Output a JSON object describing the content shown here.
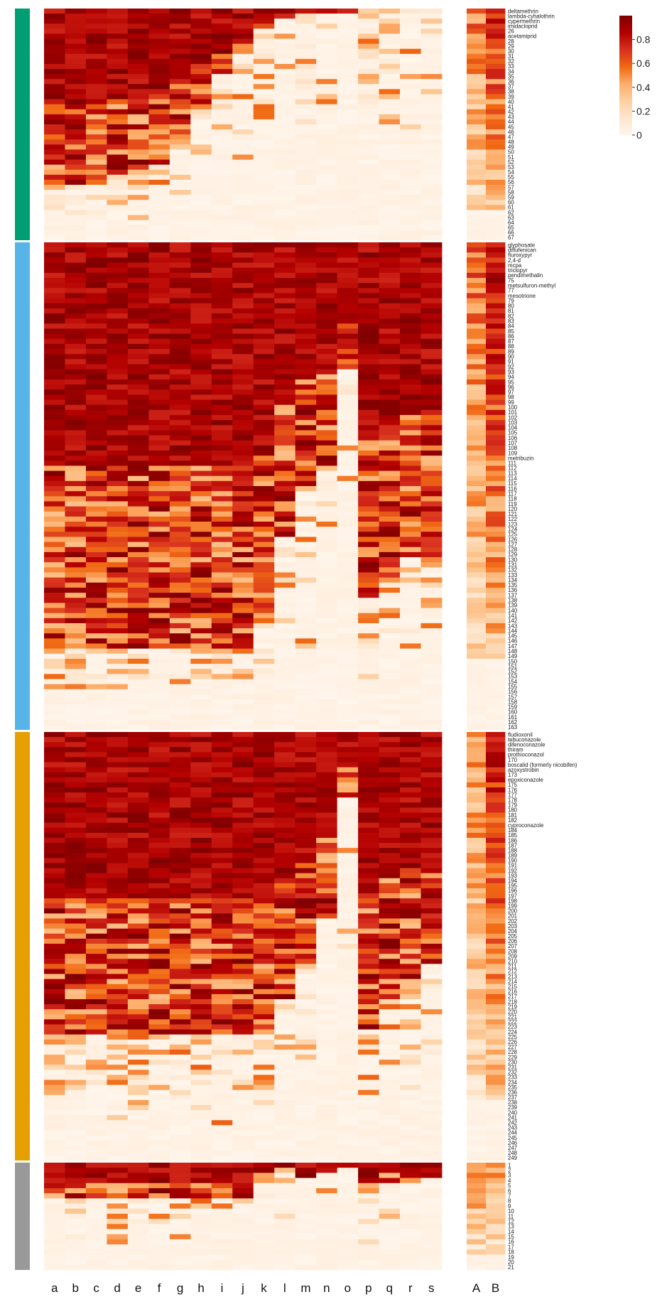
{
  "chart_data": {
    "type": "heatmap",
    "x_columns": [
      "a",
      "b",
      "c",
      "d",
      "e",
      "f",
      "g",
      "h",
      "i",
      "j",
      "k",
      "l",
      "m",
      "n",
      "o",
      "p",
      "q",
      "r",
      "s"
    ],
    "summary_columns": [
      "A",
      "B"
    ],
    "colorbar": {
      "ticks": [
        "0.8",
        "0.6",
        "0.4",
        "0.2",
        "0"
      ],
      "tick_values": [
        0.8,
        0.6,
        0.4,
        0.2,
        0
      ],
      "range": [
        0,
        1
      ],
      "stops": [
        "#fff5eb",
        "#fee6ce",
        "#fdd0a2",
        "#fdae6b",
        "#f16913",
        "#d7301f",
        "#b30000",
        "#7f0000"
      ]
    },
    "groups": [
      {
        "color": "#009e73",
        "labels": [
          "deltamethrin",
          "lambda-cyhalothrin",
          "cypermethrin",
          "imidacloprid",
          "26",
          "acetamiprid",
          "28",
          "29",
          "30",
          "31",
          "32",
          "33",
          "34",
          "35",
          "36",
          "37",
          "38",
          "39",
          "40",
          "41",
          "42",
          "43",
          "44",
          "45",
          "46",
          "47",
          "48",
          "49",
          "50",
          "51",
          "52",
          "53",
          "54",
          "55",
          "56",
          "57",
          "58",
          "59",
          "60",
          "61",
          "62",
          "63",
          "64",
          "65",
          "66",
          "67"
        ],
        "density": [
          0.95,
          0.95,
          0.93,
          0.9,
          0.9,
          0.85,
          0.75,
          0.55,
          0.35,
          0.25,
          0.1,
          0.05,
          0.02,
          0.01,
          0.01,
          0.0,
          0.0,
          0.0,
          0.0
        ],
        "tail": 0.78,
        "lowcols": [
          0.9,
          0.8,
          0.7,
          1.0,
          0.7,
          0.5,
          0.5,
          0.5,
          0.4,
          0.4,
          0.55,
          0.4,
          0.5,
          0.35,
          0.1,
          0.85,
          0.6,
          0.45,
          0.45
        ],
        "summary": [
          0.55,
          0.75
        ]
      },
      {
        "color": "#56b4e9",
        "labels": [
          "glyphosate",
          "diflufenican",
          "fluroxypyr",
          "2,4-d",
          "mcpa",
          "triclopyr",
          "pendimethalin",
          "75",
          "metsulfuron-methyl",
          "77",
          "mesotrione",
          "79",
          "80",
          "81",
          "82",
          "83",
          "84",
          "85",
          "86",
          "87",
          "88",
          "89",
          "90",
          "91",
          "92",
          "93",
          "94",
          "95",
          "96",
          "97",
          "98",
          "99",
          "100",
          "101",
          "102",
          "103",
          "104",
          "105",
          "106",
          "107",
          "108",
          "109",
          "metribuzin",
          "111",
          "112",
          "113",
          "114",
          "115",
          "116",
          "117",
          "118",
          "119",
          "120",
          "121",
          "122",
          "123",
          "124",
          "125",
          "126",
          "127",
          "128",
          "129",
          "130",
          "131",
          "132",
          "133",
          "134",
          "135",
          "136",
          "137",
          "138",
          "139",
          "140",
          "141",
          "142",
          "143",
          "144",
          "145",
          "146",
          "147",
          "148",
          "149",
          "150",
          "151",
          "152",
          "153",
          "154",
          "155",
          "156",
          "157",
          "158",
          "159",
          "160",
          "161",
          "162",
          "163"
        ],
        "density": [
          0.98,
          0.98,
          0.97,
          0.98,
          0.98,
          0.97,
          0.97,
          0.97,
          0.97,
          0.97,
          0.9,
          0.7,
          0.6,
          0.55,
          0.3,
          0.85,
          0.8,
          0.75,
          0.75
        ],
        "tail": 0.85,
        "lowcols": [
          0.9,
          0.9,
          0.8,
          0.85,
          0.85,
          0.75,
          0.75,
          0.8,
          0.75,
          0.7,
          0.5,
          0.3,
          0.3,
          0.25,
          0.1,
          0.7,
          0.55,
          0.45,
          0.45
        ],
        "summary": [
          0.6,
          0.85
        ]
      },
      {
        "color": "#e69f00",
        "labels": [
          "fludioxonil",
          "tebuconazole",
          "difenoconazole",
          "thiram",
          "prothioconazol",
          "170",
          "boscalid (formerly nicobifen)",
          "azoxystrobin",
          "173",
          "epoxiconazole",
          "175",
          "176",
          "177",
          "178",
          "179",
          "180",
          "181",
          "182",
          "cyproconazole",
          "184",
          "185",
          "186",
          "187",
          "188",
          "189",
          "190",
          "191",
          "192",
          "193",
          "194",
          "195",
          "196",
          "197",
          "198",
          "199",
          "200",
          "201",
          "202",
          "203",
          "204",
          "205",
          "206",
          "207",
          "208",
          "209",
          "210",
          "211",
          "212",
          "213",
          "214",
          "215",
          "216",
          "217",
          "218",
          "219",
          "220",
          "221",
          "222",
          "223",
          "224",
          "225",
          "226",
          "227",
          "228",
          "229",
          "230",
          "231",
          "232",
          "233",
          "234",
          "235",
          "236",
          "237",
          "238",
          "239",
          "240",
          "241",
          "242",
          "243",
          "244",
          "245",
          "246",
          "247",
          "248",
          "249"
        ],
        "density": [
          0.98,
          0.98,
          0.97,
          0.98,
          0.98,
          0.97,
          0.97,
          0.97,
          0.97,
          0.97,
          0.95,
          0.85,
          0.75,
          0.6,
          0.2,
          0.95,
          0.85,
          0.8,
          0.75
        ],
        "tail": 0.72,
        "lowcols": [
          0.85,
          0.9,
          0.6,
          0.95,
          0.9,
          0.7,
          0.8,
          0.8,
          0.75,
          0.7,
          0.95,
          0.6,
          0.4,
          0.3,
          0.1,
          0.85,
          0.55,
          0.45,
          0.45
        ],
        "summary": [
          0.5,
          0.8
        ]
      },
      {
        "color": "#999999",
        "labels": [
          "1",
          "2",
          "3",
          "4",
          "5",
          "6",
          "7",
          "8",
          "9",
          "10",
          "11",
          "12",
          "13",
          "14",
          "15",
          "16",
          "17",
          "18",
          "19",
          "20",
          "21"
        ],
        "density": [
          0.9,
          0.85,
          0.9,
          0.8,
          0.85,
          0.85,
          0.9,
          0.9,
          0.9,
          0.9,
          0.45,
          0.2,
          0.3,
          0.2,
          0.05,
          0.8,
          0.45,
          0.45,
          0.4
        ],
        "tail": 0.35,
        "lowcols": [
          0.3,
          0.4,
          0.3,
          0.6,
          0.5,
          0.35,
          0.35,
          0.4,
          0.35,
          0.35,
          0.4,
          0.1,
          0.1,
          0.1,
          0.0,
          0.5,
          0.1,
          0.1,
          0.1
        ],
        "summary": [
          0.5,
          0.45
        ]
      }
    ]
  }
}
